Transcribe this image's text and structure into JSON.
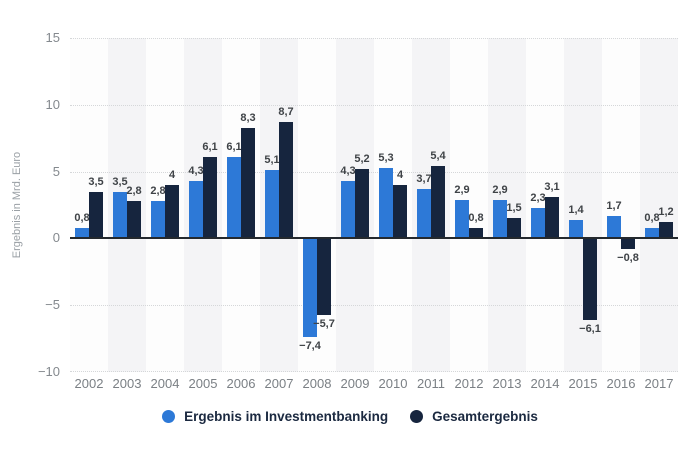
{
  "chart_data": {
    "type": "bar",
    "ylabel": "Ergebnis in Mrd. Euro",
    "categories": [
      "2002",
      "2003",
      "2004",
      "2005",
      "2006",
      "2007",
      "2008",
      "2009",
      "2010",
      "2011",
      "2012",
      "2013",
      "2014",
      "2015",
      "2016",
      "2017"
    ],
    "series": [
      {
        "name": "Ergebnis im Investmentbanking",
        "color": "#2d79d7",
        "values": [
          0.8,
          3.5,
          2.8,
          4.3,
          6.1,
          5.1,
          -7.4,
          4.3,
          5.3,
          3.7,
          2.9,
          2.9,
          2.3,
          1.4,
          1.7,
          0.8
        ],
        "labels": [
          "0,8",
          "3,5",
          "2,8",
          "4,3",
          "6,1",
          "5,1",
          "−7,4",
          "4,3",
          "5,3",
          "3,7",
          "2,9",
          "2,9",
          "2,3",
          "1,4",
          "1,7",
          "0,8"
        ]
      },
      {
        "name": "Gesamtergebnis",
        "color": "#16253e",
        "values": [
          3.5,
          2.8,
          4.0,
          6.1,
          8.3,
          8.7,
          -5.7,
          5.2,
          4.0,
          5.4,
          0.8,
          1.5,
          3.1,
          -6.1,
          -0.8,
          1.2
        ],
        "labels": [
          "3,5",
          "2,8",
          "4",
          "6,1",
          "8,3",
          "8,7",
          "−5,7",
          "5,2",
          "4",
          "5,4",
          "0,8",
          "1,5",
          "3,1",
          "−6,1",
          "−0,8",
          "1,2"
        ]
      }
    ],
    "ylim": [
      -10,
      15
    ],
    "yticks": [
      {
        "value": 15,
        "label": "15"
      },
      {
        "value": 10,
        "label": "10"
      },
      {
        "value": 5,
        "label": "5"
      },
      {
        "value": 0,
        "label": "0"
      },
      {
        "value": -5,
        "label": "−5"
      },
      {
        "value": -10,
        "label": "−10"
      }
    ],
    "grid": "horizontal dotted",
    "background_stripes": {
      "odd": "#f4f4f6",
      "even": "#fdfdfd"
    },
    "legend_position": "bottom"
  }
}
